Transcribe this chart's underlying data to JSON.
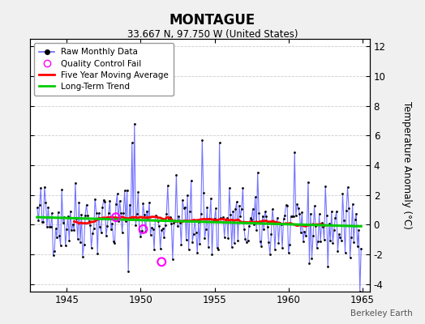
{
  "title": "MONTAGUE",
  "subtitle": "33.667 N, 97.750 W (United States)",
  "ylabel": "Temperature Anomaly (°C)",
  "credit": "Berkeley Earth",
  "ylim": [
    -4.5,
    12.5
  ],
  "yticks": [
    -4,
    -2,
    0,
    2,
    4,
    6,
    8,
    10,
    12
  ],
  "xlim": [
    1942.5,
    1965.5
  ],
  "xticks": [
    1945,
    1950,
    1955,
    1960,
    1965
  ],
  "bg_color": "#f0f0f0",
  "plot_bg": "#ffffff",
  "raw_color": "#6666ff",
  "ma_color": "#ff0000",
  "trend_color": "#00cc00",
  "qc_color": "#ff00ff",
  "figsize": [
    5.24,
    4.0
  ],
  "dpi": 100
}
